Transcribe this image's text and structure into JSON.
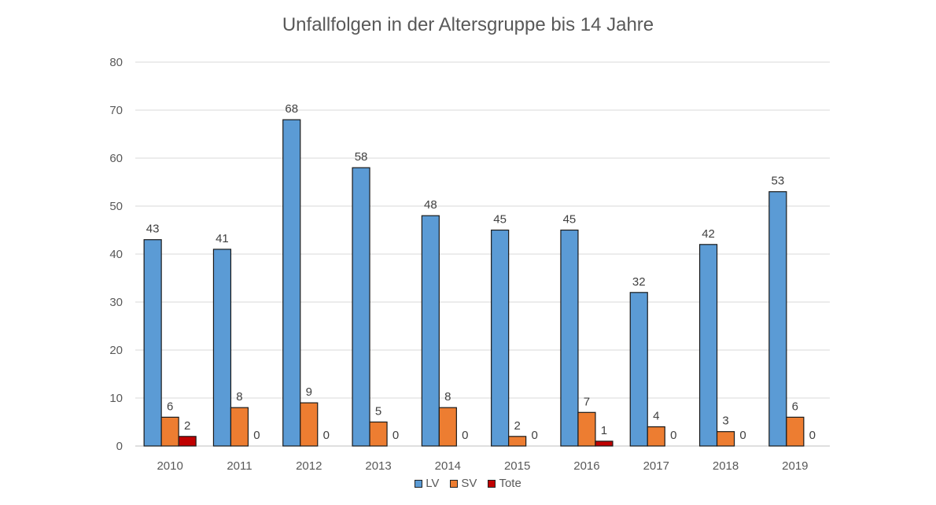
{
  "chart_data": {
    "type": "bar",
    "title": "Unfallfolgen in der Altersgruppe bis 14 Jahre",
    "xlabel": "",
    "ylabel": "",
    "ylim": [
      0,
      80
    ],
    "yticks": [
      "0",
      "10",
      "20",
      "30",
      "40",
      "50",
      "60",
      "70",
      "80"
    ],
    "grid": true,
    "legend_position": "bottom",
    "categories": [
      "2010",
      "2011",
      "2012",
      "2013",
      "2014",
      "2015",
      "2016",
      "2017",
      "2018",
      "2019"
    ],
    "series": [
      {
        "name": "LV",
        "color": "#5b9bd5",
        "values": [
          43,
          41,
          68,
          58,
          48,
          45,
          45,
          32,
          42,
          53
        ]
      },
      {
        "name": "SV",
        "color": "#ed7d31",
        "values": [
          6,
          8,
          9,
          5,
          8,
          2,
          7,
          4,
          3,
          6
        ]
      },
      {
        "name": "Tote",
        "color": "#c00000",
        "values": [
          2,
          0,
          0,
          0,
          0,
          0,
          1,
          0,
          0,
          0
        ]
      }
    ]
  }
}
